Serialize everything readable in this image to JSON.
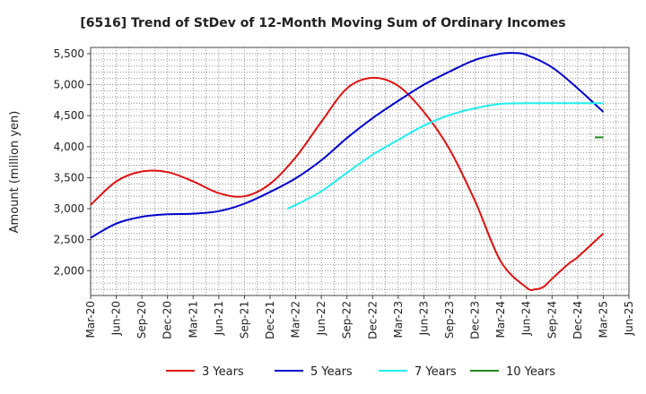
{
  "chart_data": {
    "type": "line",
    "title": "[6516]  Trend of StDev of 12-Month Moving Sum of Ordinary Incomes",
    "ylabel": "Amount (million yen)",
    "xlabel": "",
    "ylim": [
      1600,
      5600
    ],
    "yticks": [
      2000,
      2500,
      3000,
      3500,
      4000,
      4500,
      5000,
      5500
    ],
    "ytick_labels": [
      "2,000",
      "2,500",
      "3,000",
      "3,500",
      "4,000",
      "4,500",
      "5,000",
      "5,500"
    ],
    "x_ticks": [
      "Mar-20",
      "Jun-20",
      "Sep-20",
      "Dec-20",
      "Mar-21",
      "Jun-21",
      "Sep-21",
      "Dec-21",
      "Mar-22",
      "Jun-22",
      "Sep-22",
      "Dec-22",
      "Mar-23",
      "Jun-23",
      "Sep-23",
      "Dec-23",
      "Mar-24",
      "Jun-24",
      "Sep-24",
      "Dec-24",
      "Mar-25",
      "Jun-25"
    ],
    "grid": true,
    "legend_position": "bottom",
    "series": [
      {
        "name": "3 Years",
        "color": "#dd1111",
        "x": [
          0,
          1,
          2,
          3,
          4,
          5,
          6,
          7,
          8,
          9,
          10,
          11,
          12,
          13,
          14,
          15,
          16,
          17,
          17.33,
          17.67,
          18,
          18.67,
          19,
          20
        ],
        "values": [
          3060,
          3440,
          3600,
          3590,
          3440,
          3250,
          3200,
          3400,
          3830,
          4400,
          4940,
          5110,
          4980,
          4560,
          3960,
          3120,
          2150,
          1730,
          1700,
          1740,
          1870,
          2120,
          2220,
          2600
        ]
      },
      {
        "name": "5 Years",
        "color": "#0000cc",
        "x": [
          0,
          1,
          2,
          3,
          4,
          5,
          6,
          7,
          8,
          9,
          10,
          11,
          12,
          13,
          14,
          15,
          16,
          16.5,
          17,
          18,
          19,
          20
        ],
        "values": [
          2530,
          2760,
          2870,
          2910,
          2920,
          2960,
          3080,
          3270,
          3490,
          3780,
          4140,
          4460,
          4740,
          5000,
          5210,
          5400,
          5500,
          5510,
          5480,
          5280,
          4940,
          4560
        ]
      },
      {
        "name": "7 Years",
        "color": "#22eeee",
        "x": [
          7.67,
          8,
          9,
          10,
          11,
          12,
          13,
          14,
          15,
          16,
          17,
          18,
          19,
          20
        ],
        "values": [
          3000,
          3060,
          3280,
          3580,
          3870,
          4110,
          4340,
          4510,
          4620,
          4690,
          4700,
          4700,
          4700,
          4700
        ]
      },
      {
        "name": "10 Years",
        "color": "#228822",
        "x": [
          19.67,
          20
        ],
        "values": [
          4150,
          4150
        ]
      }
    ]
  }
}
